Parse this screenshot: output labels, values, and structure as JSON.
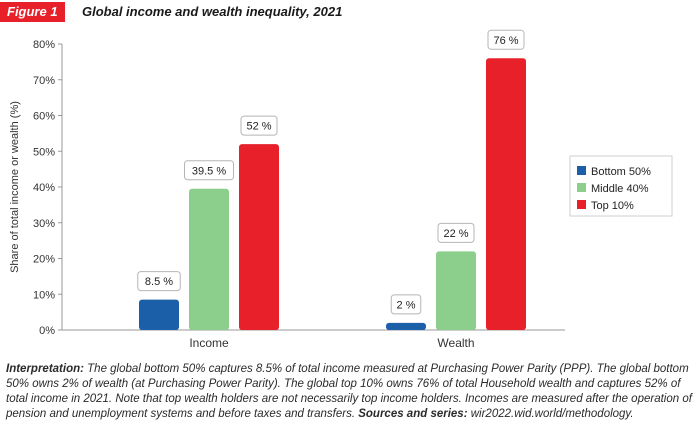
{
  "figure": {
    "badge": "Figure 1",
    "title": "Global income and wealth inequality, 2021"
  },
  "chart_data": {
    "type": "bar",
    "categories": [
      "Income",
      "Wealth"
    ],
    "series": [
      {
        "name": "Bottom 50%",
        "color": "#1a5fa8",
        "values": [
          8.5,
          2
        ],
        "labels": [
          "8.5 %",
          "2 %"
        ]
      },
      {
        "name": "Middle 40%",
        "color": "#8ccf8c",
        "values": [
          39.5,
          22
        ],
        "labels": [
          "39.5 %",
          "22 %"
        ]
      },
      {
        "name": "Top 10%",
        "color": "#e8202a",
        "values": [
          52,
          76
        ],
        "labels": [
          "52 %",
          "76 %"
        ]
      }
    ],
    "ylabel": "Share of total income or wealth (%)",
    "ylim": [
      0,
      80
    ],
    "yticks": [
      0,
      10,
      20,
      30,
      40,
      50,
      60,
      70,
      80
    ],
    "ytick_labels": [
      "0%",
      "10%",
      "20%",
      "30%",
      "40%",
      "50%",
      "60%",
      "70%",
      "80%"
    ],
    "grid": false,
    "legend_position": "right"
  },
  "caption": {
    "interpretation_label": "Interpretation:",
    "interpretation_text": " The global bottom 50% captures 8.5% of total income measured at Purchasing Power Parity (PPP). The global bottom 50% owns 2% of wealth (at Purchasing Power Parity). The global top 10% owns 76% of total Household wealth and captures 52% of total income in 2021. Note that top wealth holders are not necessarily top income holders. Incomes are measured after the operation of pension and unemployment systems and before taxes and transfers. ",
    "sources_label": "Sources and series:",
    "sources_text": " wir2022.wid.world/methodology."
  }
}
